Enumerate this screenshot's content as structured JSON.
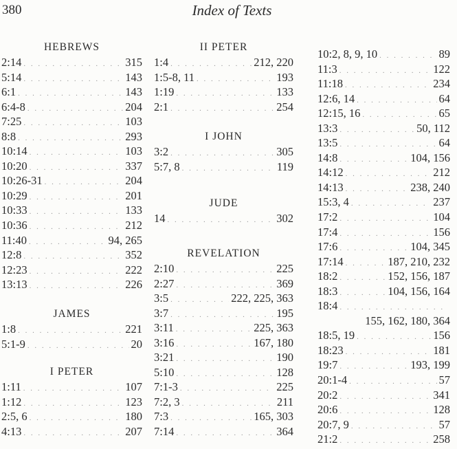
{
  "header": {
    "page_number": "380",
    "title": "Index of Texts"
  },
  "columns": [
    {
      "sections": [
        {
          "heading": "HEBREWS",
          "entries": [
            {
              "ref": "2:14",
              "pages": "315"
            },
            {
              "ref": "5:14",
              "pages": "143"
            },
            {
              "ref": "6:1",
              "pages": "143"
            },
            {
              "ref": "6:4-8",
              "pages": "204"
            },
            {
              "ref": "7:25",
              "pages": "103"
            },
            {
              "ref": "8:8",
              "pages": "293"
            },
            {
              "ref": "10:14",
              "pages": "103"
            },
            {
              "ref": "10:20",
              "pages": "337"
            },
            {
              "ref": "10:26-31",
              "pages": "204"
            },
            {
              "ref": "10:29",
              "pages": "201"
            },
            {
              "ref": "10:33",
              "pages": "133"
            },
            {
              "ref": "10:36",
              "pages": "212"
            },
            {
              "ref": "11:40",
              "pages": "94, 265"
            },
            {
              "ref": "12:8",
              "pages": "352"
            },
            {
              "ref": "12:23",
              "pages": "222"
            },
            {
              "ref": "13:13",
              "pages": "226"
            }
          ]
        },
        {
          "heading": "JAMES",
          "entries": [
            {
              "ref": "1:8",
              "pages": "221"
            },
            {
              "ref": "5:1-9",
              "pages": "20"
            }
          ]
        },
        {
          "heading": "I PETER",
          "entries": [
            {
              "ref": "1:11",
              "pages": "107"
            },
            {
              "ref": "1:12",
              "pages": "123"
            },
            {
              "ref": "2:5, 6",
              "pages": "180"
            },
            {
              "ref": "4:13",
              "pages": "207"
            }
          ]
        }
      ]
    },
    {
      "sections": [
        {
          "heading": "II PETER",
          "entries": [
            {
              "ref": "1:4",
              "pages": "212, 220"
            },
            {
              "ref": "1:5-8, 11",
              "pages": "193"
            },
            {
              "ref": "1:19",
              "pages": "133"
            },
            {
              "ref": "2:1",
              "pages": "254"
            }
          ]
        },
        {
          "heading": "I JOHN",
          "entries": [
            {
              "ref": "3:2",
              "pages": "305"
            },
            {
              "ref": "5:7, 8",
              "pages": "119"
            }
          ]
        },
        {
          "heading": "JUDE",
          "entries": [
            {
              "ref": "14",
              "pages": "302"
            }
          ]
        },
        {
          "heading": "REVELATION",
          "entries": [
            {
              "ref": "2:10",
              "pages": "225"
            },
            {
              "ref": "2:27",
              "pages": "369"
            },
            {
              "ref": "3:5",
              "pages": "222, 225, 363"
            },
            {
              "ref": "3:7",
              "pages": "195"
            },
            {
              "ref": "3:11",
              "pages": "225, 363"
            },
            {
              "ref": "3:16",
              "pages": "167, 180"
            },
            {
              "ref": "3:21",
              "pages": "190"
            },
            {
              "ref": "5:10",
              "pages": "128"
            },
            {
              "ref": "7:1-3",
              "pages": "225"
            },
            {
              "ref": "7:2, 3",
              "pages": "211"
            },
            {
              "ref": "7:3",
              "pages": "165, 303"
            },
            {
              "ref": "7:14",
              "pages": "364"
            }
          ]
        }
      ]
    },
    {
      "sections": [
        {
          "heading": "",
          "entries": [
            {
              "ref": "10:2, 8, 9, 10",
              "pages": "89"
            },
            {
              "ref": "11:3",
              "pages": "122"
            },
            {
              "ref": "11:18",
              "pages": "234"
            },
            {
              "ref": "12:6, 14",
              "pages": "64"
            },
            {
              "ref": "12:15, 16",
              "pages": "65"
            },
            {
              "ref": "13:3",
              "pages": "50, 112"
            },
            {
              "ref": "13:5",
              "pages": "64"
            },
            {
              "ref": "14:8",
              "pages": "104, 156"
            },
            {
              "ref": "14:12",
              "pages": "212"
            },
            {
              "ref": "14:13",
              "pages": "238, 240"
            },
            {
              "ref": "15:3, 4",
              "pages": "237"
            },
            {
              "ref": "17:2",
              "pages": "104"
            },
            {
              "ref": "17:4",
              "pages": "156"
            },
            {
              "ref": "17:6",
              "pages": "104, 345"
            },
            {
              "ref": "17:14",
              "pages": "187, 210, 232"
            },
            {
              "ref": "18:2",
              "pages": "152, 156, 187"
            },
            {
              "ref": "18:3",
              "pages": "104, 156, 164"
            },
            {
              "ref": "18:4",
              "pages": "155, 162, 180, 364",
              "wrapped": true
            },
            {
              "ref": "18:5, 19",
              "pages": "156"
            },
            {
              "ref": "18:23",
              "pages": "181"
            },
            {
              "ref": "19:7",
              "pages": "193, 199"
            },
            {
              "ref": "20:1-4",
              "pages": "57"
            },
            {
              "ref": "20:2",
              "pages": "341"
            },
            {
              "ref": "20:6",
              "pages": "128"
            },
            {
              "ref": "20:7, 9",
              "pages": "57"
            },
            {
              "ref": "21:2",
              "pages": "258"
            }
          ]
        }
      ]
    }
  ]
}
